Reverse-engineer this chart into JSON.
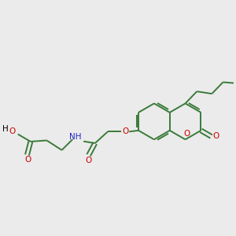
{
  "bg_color": "#ebebeb",
  "bond_color": "#3a7a3a",
  "o_color": "#cc0000",
  "n_color": "#2222cc",
  "line_width": 1.4,
  "figsize": [
    3.0,
    3.0
  ],
  "dpi": 100,
  "xlim": [
    0,
    10
  ],
  "ylim": [
    0,
    10
  ]
}
